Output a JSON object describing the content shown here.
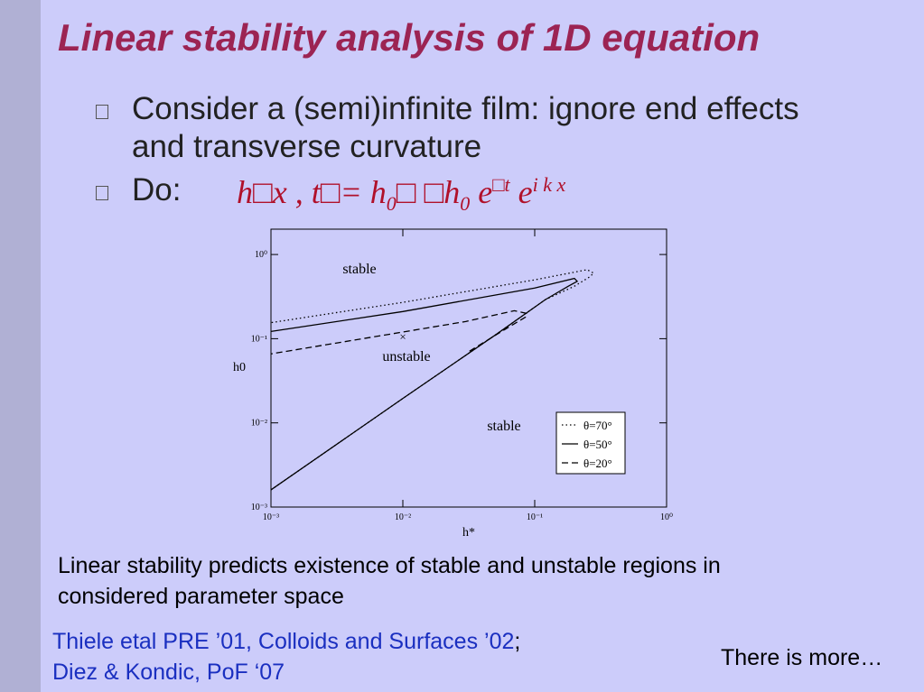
{
  "title": "Linear stability analysis of 1D equation",
  "bullets": [
    "Consider a (semi)infinite film: ignore end effects and transverse curvature",
    "Do:"
  ],
  "equation": {
    "parts": [
      "h□x , t□= h",
      "0",
      "□ □h",
      "0",
      " e",
      "□t",
      " e",
      "i k x"
    ]
  },
  "chart_data": {
    "type": "line",
    "x_label": "h*",
    "y_label": "h0",
    "xlim": [
      0.001,
      1
    ],
    "ylim": [
      0.001,
      2
    ],
    "log_x": true,
    "log_y": true,
    "legend": "lower right",
    "xticks": [
      {
        "value": 0.001,
        "label": "10⁻³"
      },
      {
        "value": 0.01,
        "label": "10⁻²"
      },
      {
        "value": 0.1,
        "label": "10⁻¹"
      },
      {
        "value": 1,
        "label": "10⁰"
      }
    ],
    "yticks": [
      {
        "value": 0.001,
        "label": "10⁻³"
      },
      {
        "value": 0.01,
        "label": "10⁻²"
      },
      {
        "value": 0.1,
        "label": "10⁻¹"
      },
      {
        "value": 1,
        "label": "10⁰"
      }
    ],
    "annotations": [
      "stable",
      "unstable",
      "stable"
    ],
    "marker": {
      "label": "×",
      "x": 0.01,
      "y": 0.105
    },
    "series": [
      {
        "name": "θ=70°",
        "color": "#000000",
        "dash": "dotted",
        "x": [
          0.001,
          0.01,
          0.05,
          0.12,
          0.2,
          0.26,
          0.28,
          0.25,
          0.1,
          0.01,
          0.001
        ],
        "values": [
          0.0016,
          0.0195,
          0.11,
          0.29,
          0.42,
          0.54,
          0.6,
          0.66,
          0.5,
          0.27,
          0.155
        ]
      },
      {
        "name": "θ=50°",
        "color": "#000000",
        "dash": "solid",
        "x": [
          0.001,
          0.01,
          0.05,
          0.12,
          0.18,
          0.21,
          0.2,
          0.1,
          0.01,
          0.001
        ],
        "values": [
          0.0016,
          0.0195,
          0.11,
          0.29,
          0.42,
          0.48,
          0.52,
          0.4,
          0.21,
          0.122
        ]
      },
      {
        "name": "θ=20°",
        "color": "#000000",
        "dash": "dashed",
        "x": [
          0.032,
          0.06,
          0.085,
          0.087,
          0.07,
          0.03,
          0.01,
          0.001
        ],
        "values": [
          0.071,
          0.13,
          0.18,
          0.2,
          0.215,
          0.16,
          0.12,
          0.066
        ]
      }
    ]
  },
  "caption": "Linear stability predicts existence of stable and unstable regions in considered parameter space",
  "references": [
    "Thiele etal PRE ’01, Colloids and Surfaces ’02",
    ";",
    "Diez & Kondic, PoF ‘07"
  ],
  "footer_note": "There is more…"
}
